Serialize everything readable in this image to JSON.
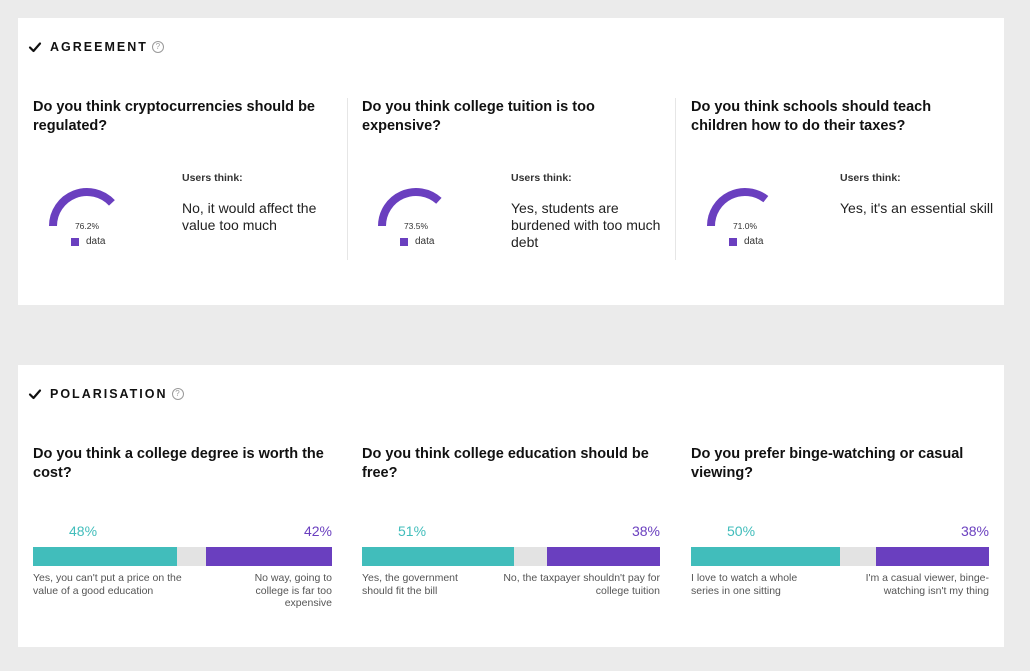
{
  "colors": {
    "gauge_fill": "#6a3fbf",
    "gauge_track": "#e3e3e3",
    "teal": "#41bdbb",
    "purple": "#6a3fbf",
    "neutral": "#e3e3e3",
    "background": "#ebebeb",
    "panel": "#ffffff"
  },
  "agreement": {
    "title": "AGREEMENT",
    "help_icon": "?",
    "cards": [
      {
        "question": "Do you think cryptocurrencies should be regulated?",
        "value": 76.2,
        "pct_label": "76.2%",
        "legend": "data",
        "users_think_label": "Users think:",
        "answer": "No, it would affect the value too much"
      },
      {
        "question": "Do you think college tuition is too expensive?",
        "value": 73.5,
        "pct_label": "73.5%",
        "legend": "data",
        "users_think_label": "Users think:",
        "answer": "Yes, students are burdened with too much debt"
      },
      {
        "question": "Do you think schools should teach children how to do their taxes?",
        "value": 71.0,
        "pct_label": "71.0%",
        "legend": "data",
        "users_think_label": "Users think:",
        "answer": "Yes, it's an essential skill"
      }
    ]
  },
  "polarisation": {
    "title": "POLARISATION",
    "help_icon": "?",
    "cards": [
      {
        "question": "Do you think a college degree is worth the cost?",
        "left_value": 48,
        "right_value": 42,
        "left_pct": "48%",
        "right_pct": "42%",
        "left_label": "Yes, you can't put a price on the value of a good education",
        "right_label": "No way, going to college is far too expensive"
      },
      {
        "question": "Do you think college education should be free?",
        "left_value": 51,
        "right_value": 38,
        "left_pct": "51%",
        "right_pct": "38%",
        "left_label": "Yes, the government should fit the bill",
        "right_label": "No, the taxpayer shouldn't pay for college tuition"
      },
      {
        "question": "Do you prefer binge-watching or casual viewing?",
        "left_value": 50,
        "right_value": 38,
        "left_pct": "50%",
        "right_pct": "38%",
        "left_label": "I love to watch a whole series in one sitting",
        "right_label": "I'm a casual viewer, binge-watching isn't my thing"
      }
    ]
  }
}
